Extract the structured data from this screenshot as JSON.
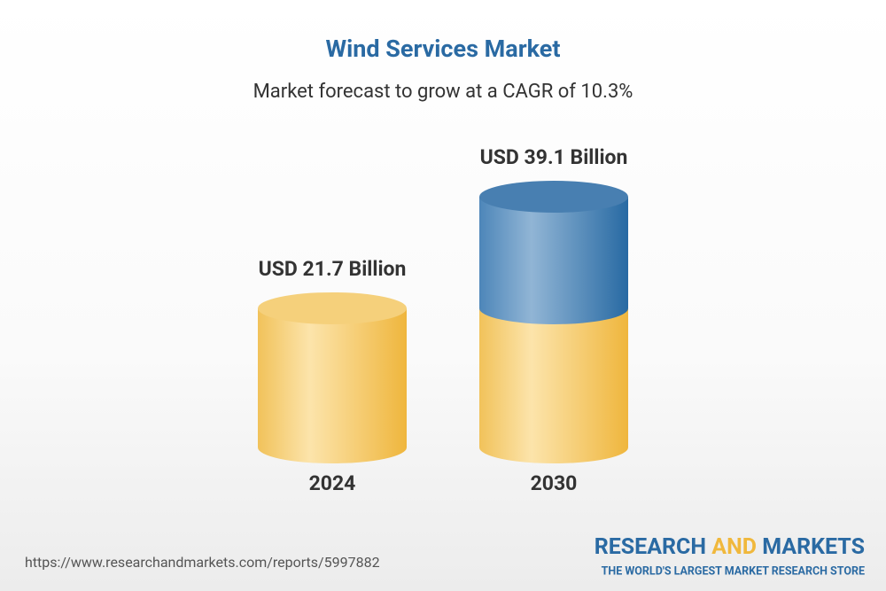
{
  "chart_data": {
    "type": "bar",
    "shape": "cylinder",
    "title": "Wind Services Market",
    "subtitle": "Market forecast to grow at a CAGR of 10.3%",
    "categories": [
      "2024",
      "2030"
    ],
    "values": [
      21.7,
      39.1
    ],
    "value_labels": [
      "USD 21.7 Billion",
      "USD 39.1 Billion"
    ],
    "color": "#f2c04f",
    "growth_color": "#2f6ea6"
  },
  "footer": {
    "url": "https://www.researchandmarkets.com/reports/5997882",
    "brand": [
      "RESEARCH",
      "AND",
      "MARKETS"
    ],
    "tagline": "THE WORLD'S LARGEST MARKET RESEARCH STORE"
  }
}
